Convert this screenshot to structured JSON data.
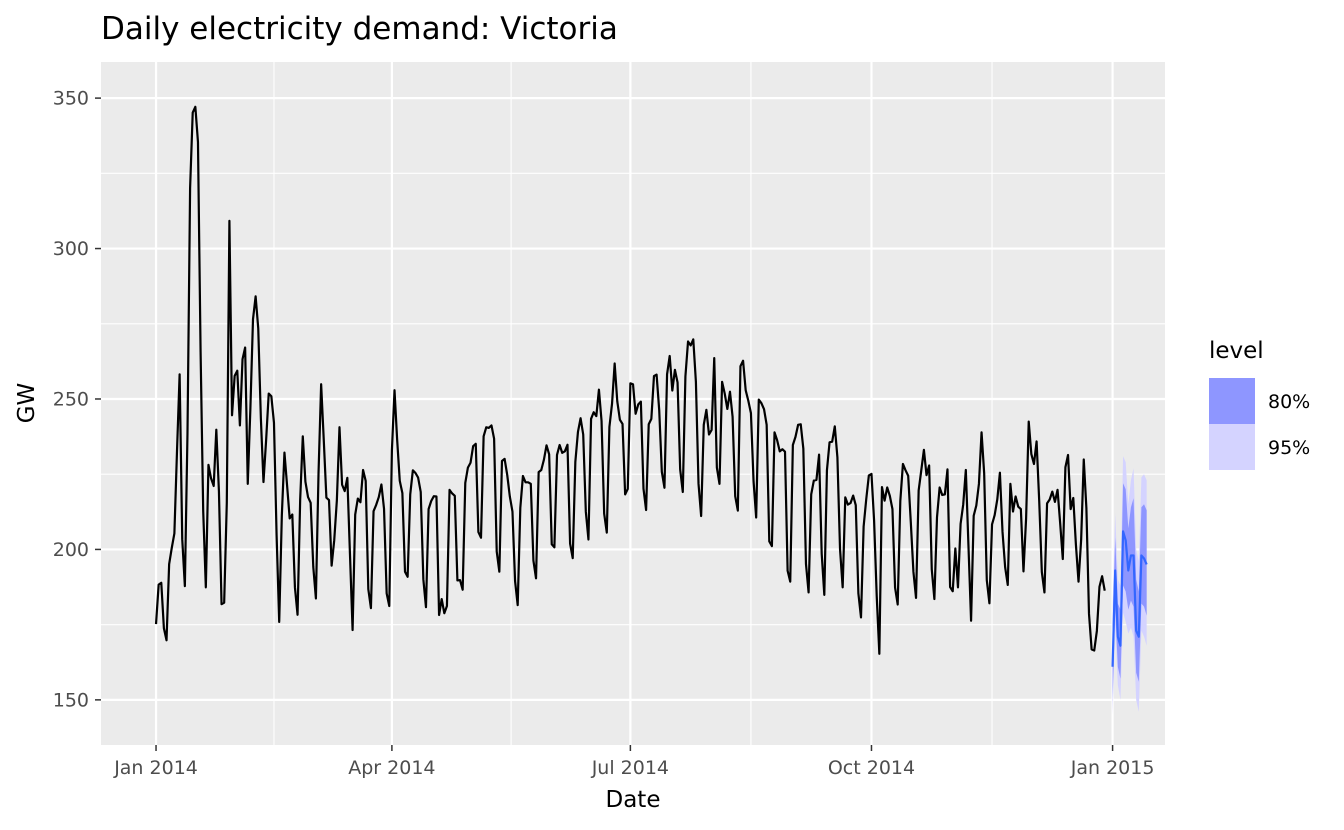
{
  "chart_data": {
    "type": "line",
    "title": "Daily electricity demand: Victoria",
    "xlabel": "Date",
    "ylabel": "GW",
    "xlim": [
      "2013-12-11",
      "2015-01-21"
    ],
    "ylim": [
      135,
      362
    ],
    "x_ticks": [
      {
        "date": "2014-01-01",
        "label": "Jan 2014"
      },
      {
        "date": "2014-04-01",
        "label": "Apr 2014"
      },
      {
        "date": "2014-07-01",
        "label": "Jul 2014"
      },
      {
        "date": "2014-10-01",
        "label": "Oct 2014"
      },
      {
        "date": "2015-01-01",
        "label": "Jan 2015"
      }
    ],
    "y_ticks": [
      150,
      200,
      250,
      300,
      350
    ],
    "grid": true,
    "legend": {
      "title": "level",
      "position": "right",
      "items": [
        {
          "label": "80%",
          "color": "#8e96ff"
        },
        {
          "label": "95%",
          "color": "#d4d3ff"
        }
      ]
    },
    "colors": {
      "panel": "#ebebeb",
      "grid": "#ffffff",
      "history_line": "#000000",
      "forecast_line": "#3366ff"
    },
    "series": [
      {
        "name": "",
        "start_date": "2014-01-01",
        "values": [
          175.2,
          188.3,
          188.9,
          173.8,
          169.8,
          195.1,
          200.5,
          205.3,
          232.7,
          258.2,
          203.4,
          187.8,
          238.5,
          320.1,
          345.2,
          347.1,
          335.4,
          265.6,
          212.7,
          187.4,
          228.1,
          223.6,
          221.1,
          239.8,
          219.3,
          181.8,
          182.3,
          215.4,
          309.2,
          244.6,
          257.7,
          259.4,
          241.2,
          263.2,
          267.1,
          221.8,
          246.8,
          276.5,
          284.1,
          273.5,
          243.6,
          222.4,
          236.2,
          251.8,
          250.9,
          242.1,
          204.8,
          175.9,
          211.3,
          232.2,
          221.3,
          210.3,
          211.6,
          187.4,
          178.3,
          216.5,
          237.6,
          222.5,
          217.4,
          215.5,
          194.2,
          183.7,
          225.3,
          254.9,
          236.4,
          217.2,
          216.4,
          194.6,
          203.1,
          216.3,
          240.6,
          221.5,
          219.4,
          223.8,
          198.4,
          173.2,
          211.6,
          216.9,
          215.7,
          226.4,
          222.8,
          186.8,
          180.5,
          212.7,
          214.8,
          217.4,
          221.6,
          213.5,
          185.4,
          181.2,
          232.9,
          252.9,
          236.5,
          222.8,
          218.7,
          192.6,
          190.9,
          218.3,
          226.3,
          225.4,
          223.9,
          219.1,
          190.1,
          180.8,
          213.4,
          216.1,
          217.7,
          217.6,
          178.2,
          183.5,
          178.8,
          181.2,
          219.8,
          218.6,
          217.8,
          189.7,
          189.8,
          186.6,
          222.1,
          227.2,
          228.8,
          234.3,
          235.1,
          205.8,
          203.9,
          237.6,
          240.6,
          240.4,
          241.2,
          236.8,
          199.3,
          192.6,
          229.4,
          230.1,
          224.8,
          217.6,
          212.6,
          189.5,
          181.5,
          213.8,
          224.4,
          222.3,
          222.3,
          221.8,
          196.3,
          190.4,
          225.7,
          226.4,
          229.8,
          234.6,
          231.6,
          201.7,
          200.7,
          231.4,
          234.7,
          232.1,
          232.6,
          234.8,
          201.9,
          197.1,
          229.1,
          239.1,
          243.6,
          238.2,
          212.5,
          203.3,
          243.4,
          245.6,
          244.3,
          253.1,
          242.7,
          211.9,
          205.6,
          240.7,
          248.4,
          261.8,
          249.2,
          243.1,
          241.7,
          218.3,
          220.1,
          255.2,
          254.9,
          245.1,
          248.2,
          249.1,
          220.2,
          213.1,
          241.6,
          243.4,
          257.6,
          258.1,
          246.3,
          225.8,
          220.5,
          258.2,
          264.3,
          252.8,
          259.7,
          255.5,
          226.6,
          219.1,
          257.5,
          269.1,
          267.8,
          269.8,
          255.7,
          221.8,
          211.1,
          241.4,
          246.4,
          238.2,
          239.7,
          263.6,
          227.2,
          221.8,
          255.7,
          251.8,
          246.7,
          252.4,
          244.1,
          217.7,
          212.9,
          260.9,
          262.7,
          252.9,
          249.4,
          245.3,
          222.7,
          210.6,
          249.8,
          248.6,
          246.6,
          241.4,
          202.7,
          201.1,
          238.9,
          236.3,
          232.6,
          233.3,
          232.5,
          192.9,
          189.3,
          234.7,
          237.4,
          241.4,
          241.6,
          233.5,
          195.2,
          185.7,
          218.3,
          222.9,
          223.1,
          231.5,
          198.6,
          184.9,
          226.3,
          235.6,
          235.8,
          240.9,
          230.6,
          200.1,
          187.4,
          217.3,
          214.9,
          215.4,
          217.9,
          214.7,
          185.4,
          177.4,
          207.6,
          216.7,
          224.6,
          225.1,
          209.5,
          184.5,
          165.3,
          220.7,
          216.2,
          220.6,
          217.8,
          213.4,
          187.3,
          181.7,
          216.1,
          228.4,
          226.3,
          224.5,
          209.1,
          192.6,
          183.9,
          219.6,
          226.3,
          233.1,
          224.7,
          227.9,
          193.4,
          183.5,
          210.7,
          220.6,
          218.1,
          218.3,
          226.6,
          187.5,
          186.1,
          200.3,
          187.4,
          208.5,
          214.9,
          226.4,
          201.3,
          176.3,
          211.2,
          214.6,
          221.8,
          238.9,
          225.3,
          189.8,
          182.1,
          208.3,
          211.4,
          216.6,
          225.5,
          205.8,
          194.1,
          188.2,
          221.8,
          212.6,
          217.6,
          214.2,
          213.4,
          192.7,
          210.3,
          242.5,
          231.7,
          228.4,
          235.9,
          216.1,
          192.5,
          185.7,
          215.3,
          216.6,
          219.2,
          215.8,
          219.8,
          208.7,
          196.8,
          227.3,
          231.4,
          213.4,
          217.1,
          201.6,
          189.3,
          203.2,
          229.9,
          213.8,
          178.6,
          166.8,
          166.4,
          172.9,
          187.6,
          191.1,
          186.3
        ]
      },
      {
        "name": "",
        "start_date": "2015-01-01",
        "values": [
          161.0,
          193.0,
          171.0,
          168.0,
          206.0,
          203.0,
          193.0,
          198.0,
          198.0,
          173.0,
          171.0,
          198.0,
          197.0,
          195.0
        ],
        "pi80_lower": [
          150.0,
          180.0,
          161.0,
          157.0,
          188.0,
          186.0,
          180.0,
          183.0,
          181.0,
          159.0,
          156.0,
          182.0,
          181.0,
          178.0
        ],
        "pi80_upper": [
          175.0,
          204.0,
          182.0,
          180.0,
          222.0,
          220.0,
          207.0,
          214.0,
          217.0,
          190.0,
          186.0,
          214.0,
          215.0,
          213.0
        ],
        "pi95_lower": [
          145.0,
          174.0,
          155.0,
          150.0,
          179.0,
          176.0,
          172.0,
          174.0,
          171.0,
          150.0,
          146.0,
          173.0,
          171.0,
          168.0
        ],
        "pi95_upper": [
          181.0,
          212.0,
          190.0,
          188.0,
          231.0,
          229.0,
          215.0,
          223.0,
          227.0,
          200.0,
          196.0,
          224.0,
          225.0,
          223.0
        ]
      }
    ]
  }
}
